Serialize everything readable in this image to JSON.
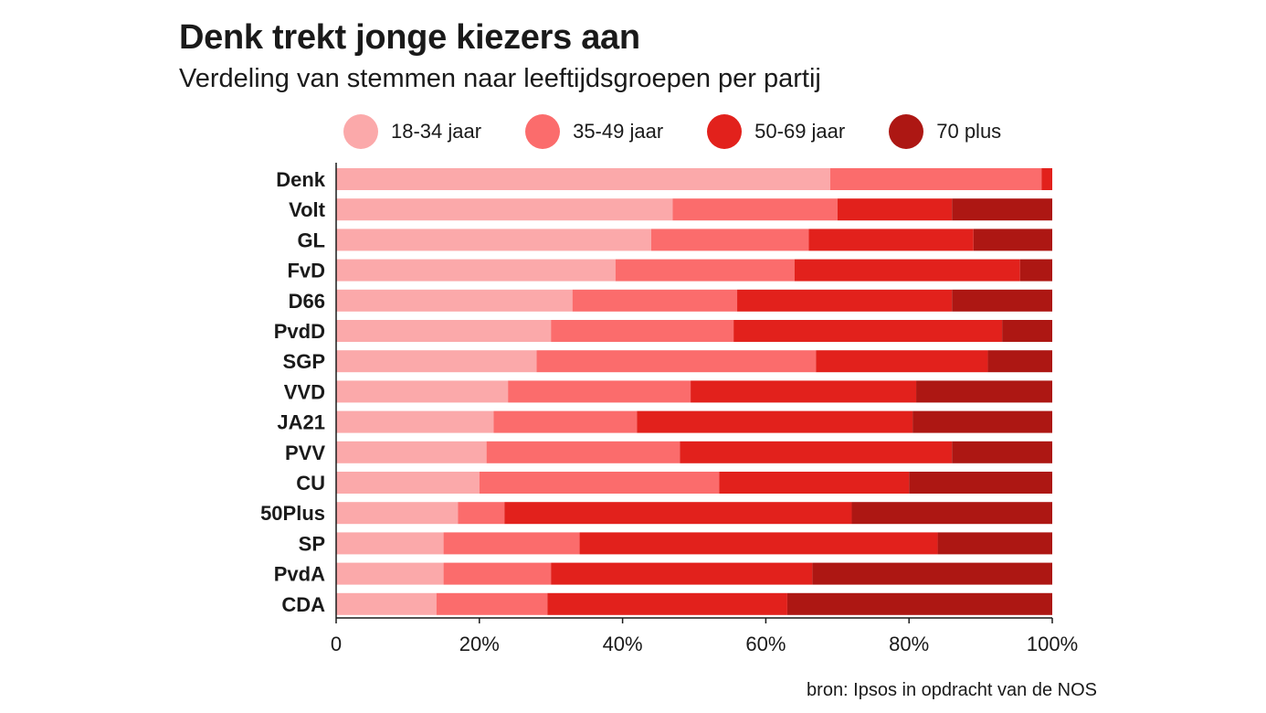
{
  "title": "Denk trekt jonge kiezers aan",
  "subtitle": "Verdeling van stemmen naar leeftijdsgroepen per partij",
  "source": "bron: Ipsos in opdracht van de NOS",
  "legend": [
    {
      "label": "18-34 jaar",
      "color": "#fba9aa"
    },
    {
      "label": "35-49 jaar",
      "color": "#fb6c6c"
    },
    {
      "label": "50-69 jaar",
      "color": "#e2211c"
    },
    {
      "label": "70 plus",
      "color": "#ad1713"
    }
  ],
  "chart_data": {
    "type": "bar",
    "orientation": "horizontal",
    "stacked": true,
    "title": "Denk trekt jonge kiezers aan",
    "subtitle": "Verdeling van stemmen naar leeftijdsgroepen per partij",
    "categories": [
      "Denk",
      "Volt",
      "GL",
      "FvD",
      "D66",
      "PvdD",
      "SGP",
      "VVD",
      "JA21",
      "PVV",
      "CU",
      "50Plus",
      "SP",
      "PvdA",
      "CDA"
    ],
    "series": [
      {
        "name": "18-34 jaar",
        "color": "#fba9aa",
        "values": [
          69,
          47,
          44,
          39,
          33,
          30,
          28,
          24,
          22,
          21,
          20,
          17,
          15,
          15,
          14
        ]
      },
      {
        "name": "35-49 jaar",
        "color": "#fb6c6c",
        "values": [
          29.5,
          23,
          22,
          25,
          23,
          25.5,
          39,
          25.5,
          20,
          27,
          33.5,
          6.5,
          19,
          15,
          15.5
        ]
      },
      {
        "name": "50-69 jaar",
        "color": "#e2211c",
        "values": [
          1.5,
          16,
          23,
          31.5,
          30,
          37.5,
          24,
          31.5,
          38.5,
          38,
          26.5,
          48.5,
          50,
          36.5,
          33.5
        ]
      },
      {
        "name": "70 plus",
        "color": "#ad1713",
        "values": [
          0,
          14,
          11,
          4.5,
          14,
          7,
          9,
          19,
          19.5,
          14,
          20,
          28,
          16,
          33.5,
          37
        ]
      }
    ],
    "xlim": [
      0,
      100
    ],
    "xticks": [
      "0",
      "20%",
      "40%",
      "60%",
      "80%",
      "100%"
    ],
    "legend_position": "top",
    "grid": false
  }
}
